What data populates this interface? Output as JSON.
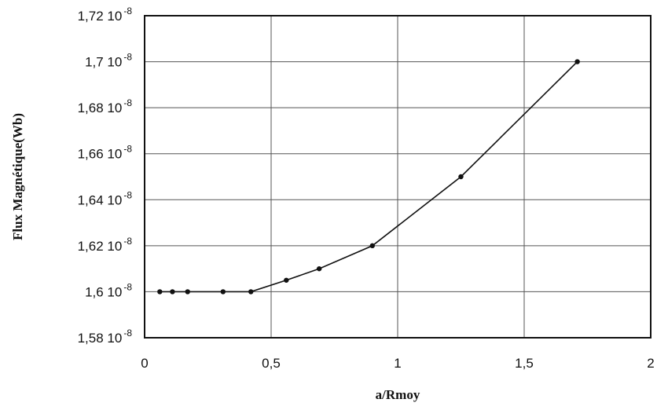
{
  "chart_data": {
    "type": "line",
    "title": "",
    "xlabel": "a/Rmoy",
    "ylabel": "Flux Magnétique(Wb)",
    "xlim": [
      0,
      2
    ],
    "ylim": [
      1.58e-08,
      1.72e-08
    ],
    "x_ticks": [
      {
        "value": 0,
        "label": "0"
      },
      {
        "value": 0.5,
        "label": "0,5"
      },
      {
        "value": 1,
        "label": "1"
      },
      {
        "value": 1.5,
        "label": "1,5"
      },
      {
        "value": 2,
        "label": "2"
      }
    ],
    "y_ticks": [
      {
        "value": 1.58e-08,
        "mantissa": "1,58 10",
        "exponent": "-8"
      },
      {
        "value": 1.6e-08,
        "mantissa": "1,6 10",
        "exponent": "-8"
      },
      {
        "value": 1.62e-08,
        "mantissa": "1,62 10",
        "exponent": "-8"
      },
      {
        "value": 1.64e-08,
        "mantissa": "1,64 10",
        "exponent": "-8"
      },
      {
        "value": 1.66e-08,
        "mantissa": "1,66 10",
        "exponent": "-8"
      },
      {
        "value": 1.68e-08,
        "mantissa": "1,68 10",
        "exponent": "-8"
      },
      {
        "value": 1.7e-08,
        "mantissa": "1,7 10",
        "exponent": "-8"
      },
      {
        "value": 1.72e-08,
        "mantissa": "1,72 10",
        "exponent": "-8"
      }
    ],
    "grid": true,
    "series": [
      {
        "x": [
          0.06,
          0.11,
          0.17,
          0.31,
          0.42,
          0.56,
          0.69,
          0.9,
          1.25,
          1.71
        ],
        "y": [
          1.6e-08,
          1.6e-08,
          1.6e-08,
          1.6e-08,
          1.6e-08,
          1.605e-08,
          1.61e-08,
          1.62e-08,
          1.65e-08,
          1.7e-08
        ],
        "color": "#111111"
      }
    ]
  }
}
